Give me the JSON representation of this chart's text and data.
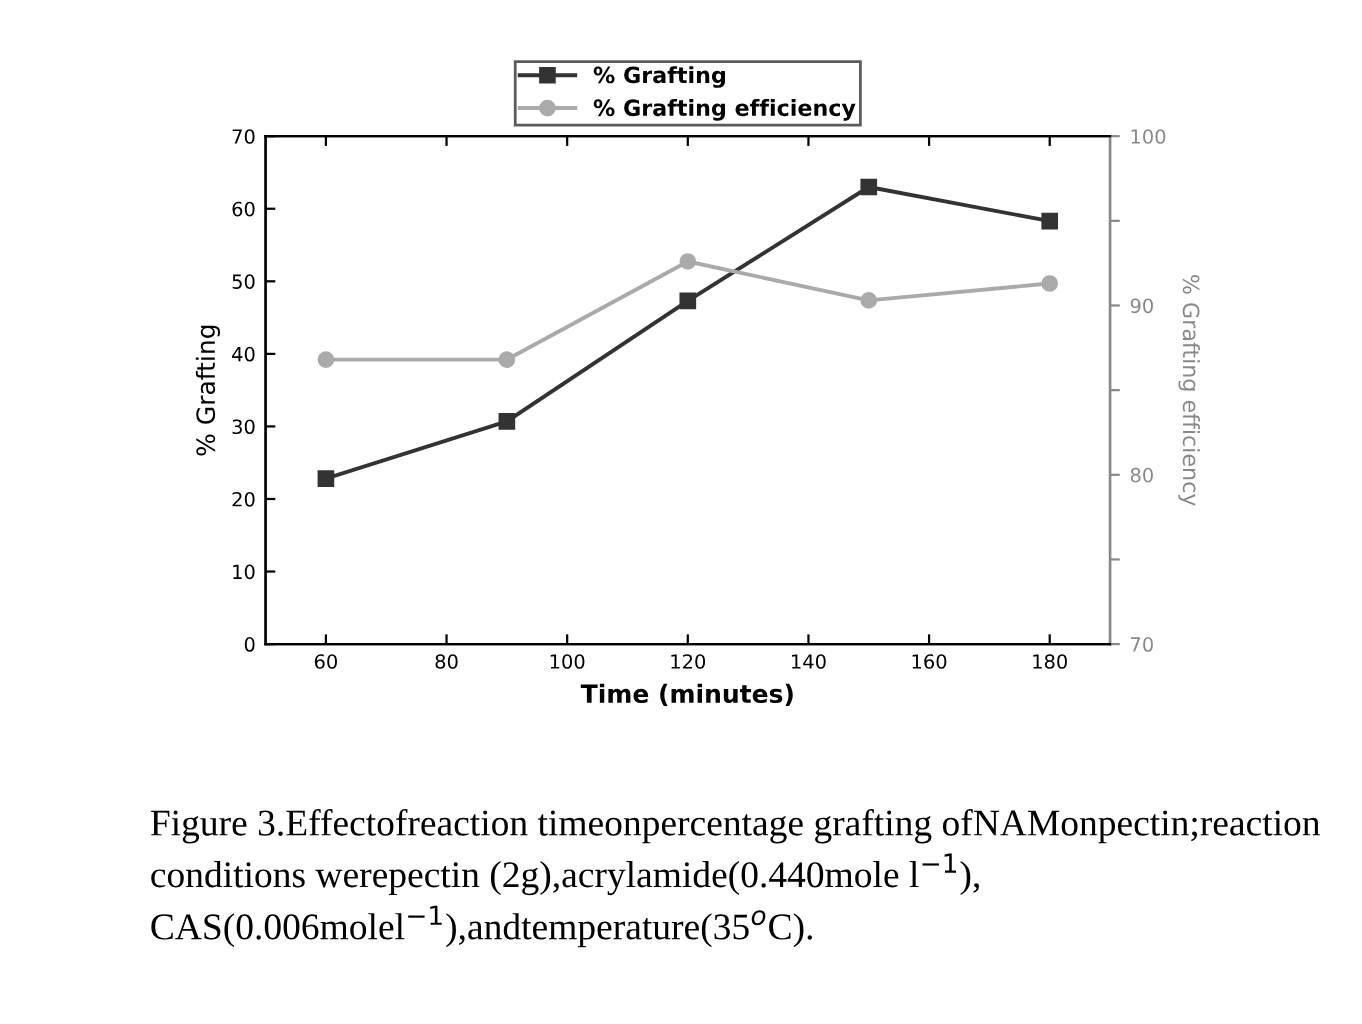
{
  "chart_data": {
    "type": "line",
    "xlabel": "Time (minutes)",
    "ylabel": "% Grafting",
    "y2label": "% Grafting efficiency",
    "x": [
      60,
      90,
      120,
      150,
      180
    ],
    "series": [
      {
        "name": "% Grafting",
        "color": "#333333",
        "marker": "square",
        "values": [
          22.8,
          30.7,
          47.3,
          63.0,
          58.3
        ]
      },
      {
        "name": "% Grafting efficiency",
        "color": "#aaaaaa",
        "marker": "circle",
        "axis": "y2",
        "values": [
          86.8,
          86.8,
          92.6,
          90.3,
          91.3
        ]
      }
    ],
    "xlim": [
      50,
      190
    ],
    "xticks": [
      60,
      80,
      100,
      120,
      140,
      160,
      180
    ],
    "ylim": [
      0,
      70
    ],
    "yticks": [
      0,
      10,
      20,
      30,
      40,
      50,
      60,
      70
    ],
    "y2lim": [
      70,
      100
    ],
    "y2ticks": [
      70,
      {
        "value": 75,
        "label": null
      },
      80,
      {
        "value": 85,
        "label": null
      },
      90,
      {
        "value": 95,
        "label": null
      },
      100
    ],
    "grid": false,
    "legend": "top",
    "line_style": "solid",
    "annotations": [
      "Figure 3.Effectofreaction timeonpercentage grafting ofNAMonpectin;reaction conditions werepectin (2g),acrylamide(0.440mole l$^{−1}$), CAS(0.006molel$^{−1}$),andtemperature(35$^{o}$C)."
    ]
  }
}
